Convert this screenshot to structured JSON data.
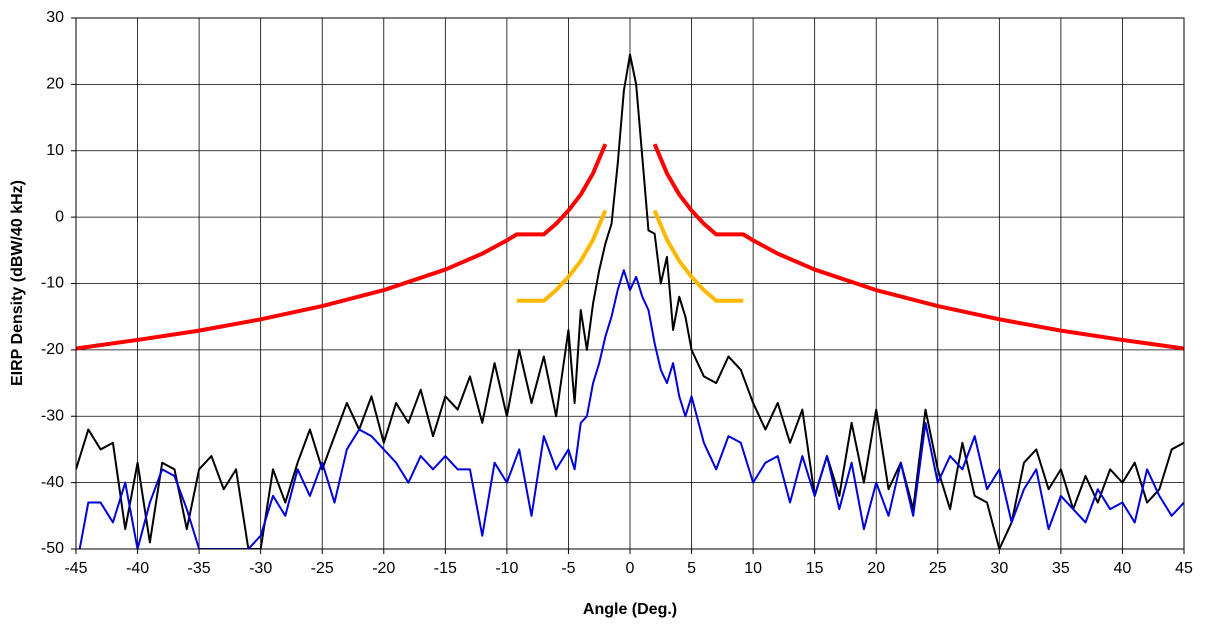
{
  "chart_data": {
    "type": "line",
    "xlabel": "Angle (Deg.)",
    "ylabel": "EIRP Density (dBW/40 kHz)",
    "xlim": [
      -45,
      45
    ],
    "xticks": [
      -45,
      -40,
      -35,
      -30,
      -25,
      -20,
      -15,
      -10,
      -5,
      0,
      5,
      10,
      15,
      20,
      25,
      30,
      35,
      40,
      45
    ],
    "ylim": [
      -50,
      30
    ],
    "yticks": [
      -50,
      -40,
      -30,
      -20,
      -10,
      0,
      10,
      20,
      30
    ],
    "grid": true,
    "series": [
      {
        "color": "#ff0000",
        "x": [
          -45,
          -40,
          -35,
          -30,
          -25,
          -20,
          -15,
          -12,
          -10,
          -9.2,
          -7,
          -6,
          -5,
          -4,
          -3,
          -2,
          0,
          2,
          3,
          4,
          5,
          6,
          7,
          9.2,
          10,
          12,
          15,
          20,
          25,
          30,
          35,
          40,
          45
        ],
        "values": [
          -19.8,
          -18.5,
          -17.1,
          -15.4,
          -13.4,
          -11.0,
          -7.9,
          -5.5,
          -3.5,
          -2.6,
          -2.6,
          -1.0,
          1.0,
          3.4,
          6.6,
          11.0,
          null,
          11.0,
          6.6,
          3.4,
          1.0,
          -1.0,
          -2.6,
          -2.6,
          -3.5,
          -5.5,
          -7.9,
          -11.0,
          -13.4,
          -15.4,
          -17.1,
          -18.5,
          -19.8
        ]
      },
      {
        "color": "#ffb800",
        "x": [
          -9.2,
          -7,
          -6,
          -5,
          -4,
          -3,
          -2,
          0,
          2,
          3,
          4,
          5,
          6,
          7,
          9.2
        ],
        "values": [
          -12.6,
          -12.6,
          -11.0,
          -9.0,
          -6.6,
          -3.4,
          1.0,
          null,
          1.0,
          -3.4,
          -6.6,
          -9.0,
          -11.0,
          -12.6,
          -12.6
        ]
      },
      {
        "color": "#000000",
        "x": [
          -45,
          -44,
          -43,
          -42,
          -41,
          -40,
          -39,
          -38,
          -37,
          -36,
          -35,
          -34,
          -33,
          -32,
          -31,
          -30,
          -29,
          -28,
          -27,
          -26,
          -25,
          -24,
          -23,
          -22,
          -21,
          -20,
          -19,
          -18,
          -17,
          -16,
          -15,
          -14,
          -13,
          -12,
          -11,
          -10,
          -9,
          -8,
          -7,
          -6,
          -5,
          -4.5,
          -4,
          -3.5,
          -3,
          -2.5,
          -2,
          -1.5,
          -1,
          -0.5,
          0,
          0.5,
          1,
          1.5,
          2,
          2.5,
          3,
          3.5,
          4,
          4.5,
          5,
          6,
          7,
          8,
          9,
          10,
          11,
          12,
          13,
          14,
          15,
          16,
          17,
          18,
          19,
          20,
          21,
          22,
          23,
          24,
          25,
          26,
          27,
          28,
          29,
          30,
          31,
          32,
          33,
          34,
          35,
          36,
          37,
          38,
          39,
          40,
          41,
          42,
          43,
          44,
          45
        ],
        "values": [
          -38,
          -32,
          -35,
          -34,
          -47,
          -37,
          -49,
          -37,
          -38,
          -47,
          -38,
          -36,
          -41,
          -38,
          -50,
          -50,
          -38,
          -43,
          -37,
          -32,
          -38,
          -33,
          -28,
          -32,
          -27,
          -34,
          -28,
          -31,
          -26,
          -33,
          -27,
          -29,
          -24,
          -31,
          -22,
          -30,
          -20,
          -28,
          -21,
          -30,
          -17,
          -28,
          -14,
          -20,
          -13,
          -8,
          -4,
          -1,
          8,
          19,
          24.5,
          20,
          9,
          -2,
          -2.5,
          -10,
          -6,
          -17,
          -12,
          -15,
          -20,
          -24,
          -25,
          -21,
          -23,
          -28,
          -32,
          -28,
          -34,
          -29,
          -42,
          -36,
          -42,
          -31,
          -40,
          -29,
          -41,
          -37,
          -44,
          -29,
          -38,
          -44,
          -34,
          -42,
          -43,
          -50,
          -46,
          -37,
          -35,
          -41,
          -38,
          -44,
          -39,
          -43,
          -38,
          -40,
          -37,
          -43,
          -41,
          -35,
          -34
        ]
      },
      {
        "color": "#0000dd",
        "x": [
          -44.7,
          -44,
          -43,
          -42,
          -41,
          -40,
          -39,
          -38,
          -37,
          -36,
          -35,
          -34,
          -33,
          -32,
          -31,
          -30,
          -29,
          -28,
          -27,
          -26,
          -25,
          -24,
          -23,
          -22,
          -21,
          -20,
          -19,
          -18,
          -17,
          -16,
          -15,
          -14,
          -13,
          -12,
          -11,
          -10,
          -9,
          -8,
          -7,
          -6,
          -5,
          -4.5,
          -4,
          -3.5,
          -3,
          -2.5,
          -2,
          -1.5,
          -1,
          -0.5,
          0,
          0.5,
          1,
          1.5,
          2,
          2.5,
          3,
          3.5,
          4,
          4.5,
          5,
          6,
          7,
          8,
          9,
          10,
          11,
          12,
          13,
          14,
          15,
          16,
          17,
          18,
          19,
          20,
          21,
          22,
          23,
          24,
          25,
          26,
          27,
          28,
          29,
          30,
          31,
          32,
          33,
          34,
          35,
          36,
          37,
          38,
          39,
          40,
          41,
          42,
          43,
          44,
          45
        ],
        "values": [
          -50,
          -43,
          -43,
          -46,
          -40,
          -50,
          -43,
          -38,
          -39,
          -44,
          -50,
          -50,
          -50,
          -50,
          -50,
          -48,
          -42,
          -45,
          -38,
          -42,
          -37,
          -43,
          -35,
          -32,
          -33,
          -35,
          -37,
          -40,
          -36,
          -38,
          -36,
          -38,
          -38,
          -48,
          -37,
          -40,
          -35,
          -45,
          -33,
          -38,
          -35,
          -38,
          -31,
          -30,
          -25,
          -22,
          -18,
          -15,
          -11,
          -8,
          -11,
          -9,
          -12,
          -14,
          -19,
          -23,
          -25,
          -22,
          -27,
          -30,
          -27,
          -34,
          -38,
          -33,
          -34,
          -40,
          -37,
          -36,
          -43,
          -36,
          -42,
          -36,
          -44,
          -37,
          -47,
          -40,
          -45,
          -37,
          -45,
          -31,
          -40,
          -36,
          -38,
          -33,
          -41,
          -38,
          -46,
          -41,
          -38,
          -47,
          -42,
          -44,
          -46,
          -41,
          -44,
          -43,
          -46,
          -38,
          -42,
          -45,
          -43
        ]
      }
    ]
  }
}
